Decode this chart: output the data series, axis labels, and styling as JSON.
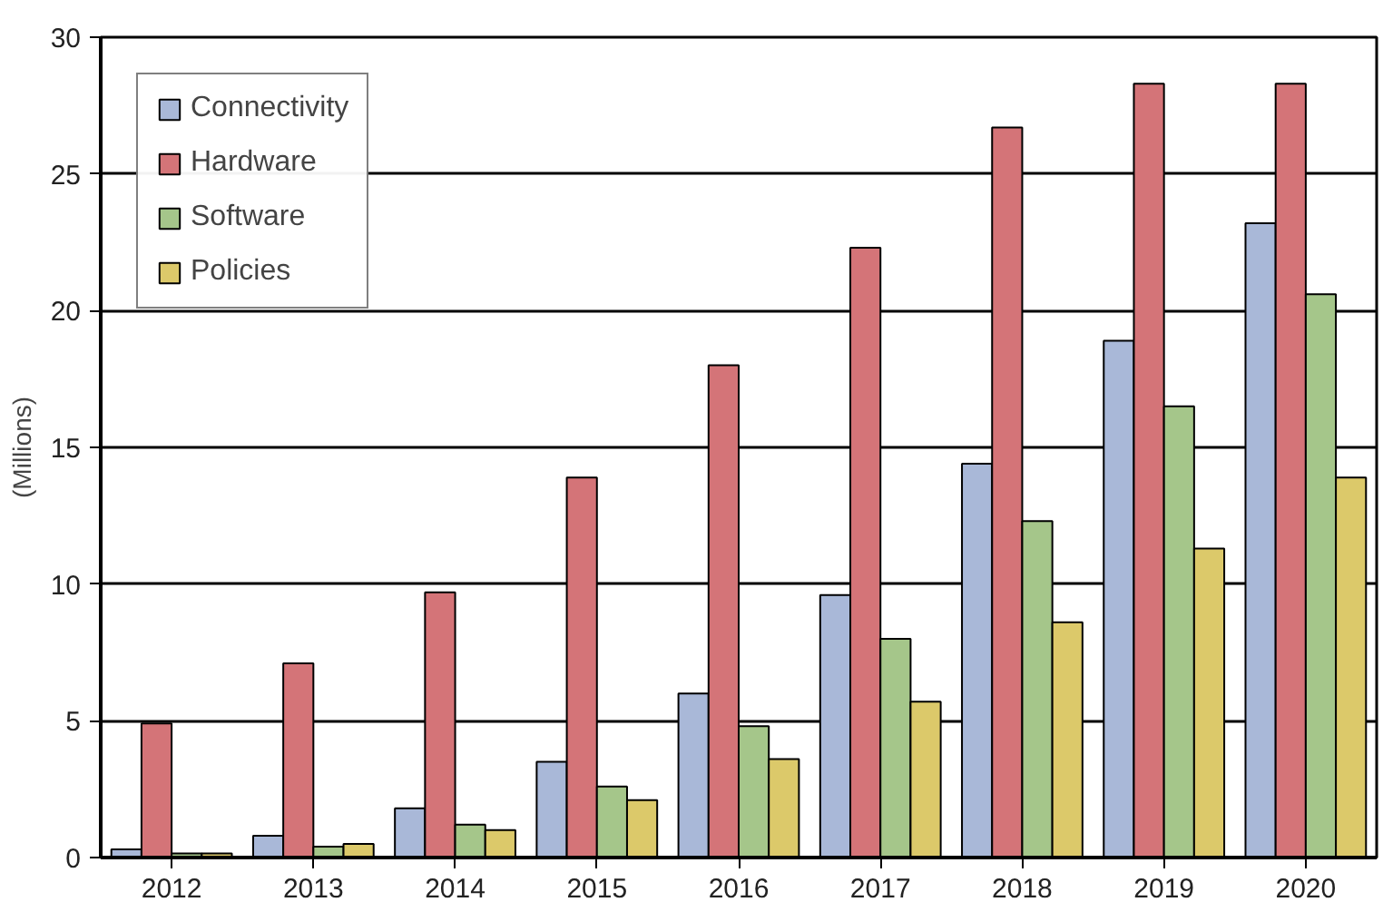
{
  "chart_data": {
    "type": "bar",
    "ylabel": "(Millions)",
    "categories": [
      "2012",
      "2013",
      "2014",
      "2015",
      "2016",
      "2017",
      "2018",
      "2019",
      "2020"
    ],
    "series": [
      {
        "name": "Connectivity",
        "color": "#a9b8d8",
        "values": [
          0.3,
          0.8,
          1.8,
          3.5,
          6.0,
          9.6,
          14.4,
          18.9,
          23.2
        ]
      },
      {
        "name": "Hardware",
        "color": "#d47478",
        "values": [
          4.9,
          7.1,
          9.7,
          13.9,
          18.0,
          22.3,
          26.7,
          28.3,
          28.3
        ]
      },
      {
        "name": "Software",
        "color": "#a5c68a",
        "values": [
          0.15,
          0.4,
          1.2,
          2.6,
          4.8,
          8.0,
          12.3,
          16.5,
          20.6
        ]
      },
      {
        "name": "Policies",
        "color": "#dcc96a",
        "values": [
          0.15,
          0.5,
          1.0,
          2.1,
          3.6,
          5.7,
          8.6,
          11.3,
          13.9
        ]
      }
    ],
    "ylim": [
      0,
      30
    ],
    "yticks": [
      0,
      5,
      10,
      15,
      20,
      25,
      30
    ],
    "grid": "y",
    "legend": "top left"
  }
}
